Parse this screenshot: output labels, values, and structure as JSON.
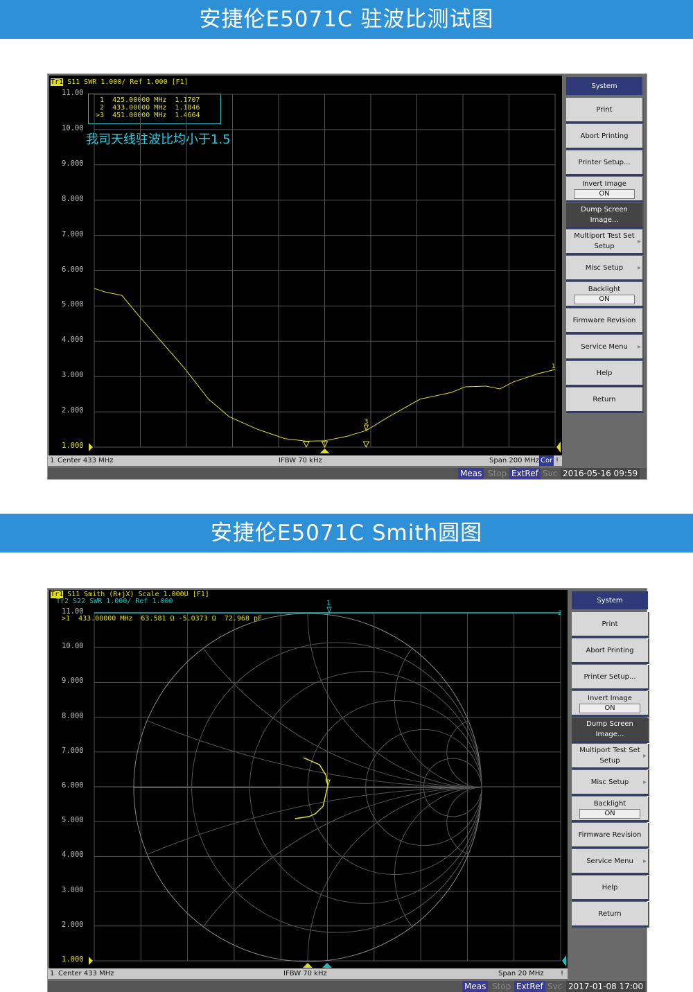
{
  "banner1": "安捷伦E5071C  驻波比测试图",
  "banner2": "安捷伦E5071C  Smith圆图",
  "softkeys": [
    {
      "label": "System",
      "style": "title"
    },
    {
      "label": "Print"
    },
    {
      "label": "Abort Printing"
    },
    {
      "label": "Printer Setup..."
    },
    {
      "label": "Invert Image",
      "value": "ON"
    },
    {
      "label": "Dump Screen Image...",
      "style": "dark"
    },
    {
      "label": "Multiport Test Set Setup",
      "arrow": true
    },
    {
      "label": "Misc Setup",
      "arrow": true
    },
    {
      "label": "Backlight",
      "value": "ON"
    },
    {
      "label": "Firmware Revision"
    },
    {
      "label": "Service Menu",
      "arrow": true
    },
    {
      "label": "Help"
    },
    {
      "label": "Return"
    }
  ],
  "y_ticks": [
    "11.00",
    "10.00",
    "9.000",
    "8.000",
    "7.000",
    "6.000",
    "5.000",
    "4.000",
    "3.000",
    "2.000",
    "1.000"
  ],
  "colors": {
    "trace1": "#e0e020",
    "trace2": "#20c0c0",
    "grid": "#555555",
    "banner": "#2e90d6"
  },
  "panel1": {
    "trace_header": "S11 SWR 1.000/ Ref 1.000 [F1]",
    "tr_label": "Tr1",
    "markers": [
      "  1  425.00000 MHz  1.1707",
      "  2  433.00000 MHz  1.1846",
      " >3  451.00000 MHz  1.4664"
    ],
    "annotation": "我司天线驻波比均小于1.5",
    "status": {
      "channel": "1",
      "center": "Center 433 MHz",
      "ifbw": "IFBW 70 kHz",
      "span": "Span 200 MHz",
      "cor": "Cor",
      "excl": "!"
    },
    "bottom": {
      "meas": "Meas",
      "stop": "Stop",
      "extref": "ExtRef",
      "svc": "Svc",
      "datetime": "2016-05-16 09:59"
    },
    "trace": {
      "x_range_mhz": [
        333,
        533
      ],
      "y_range": [
        1,
        11
      ],
      "freq": [
        333,
        337.5,
        345,
        352.5,
        361.6,
        372.1,
        382.6,
        391.6,
        403.7,
        415.7,
        425,
        433,
        442.8,
        451,
        460.8,
        474.4,
        488,
        494,
        503,
        509,
        515,
        525.5,
        533
      ],
      "swr": [
        5.5,
        5.4,
        5.3,
        4.71,
        4.03,
        3.24,
        2.36,
        1.86,
        1.51,
        1.24,
        1.17,
        1.18,
        1.31,
        1.47,
        1.86,
        2.36,
        2.55,
        2.71,
        2.73,
        2.65,
        2.85,
        3.08,
        3.2
      ]
    },
    "marker_freqs": [
      425,
      433,
      451
    ],
    "marker_labels": [
      "1",
      "2",
      "3"
    ]
  },
  "panel2": {
    "tr1_label": "Tr1",
    "tr1_header": "S11 Smith (R+jX) Scale 1.000U [F1]",
    "tr2_header": "Tr2 S22 SWR 1.000/ Ref 1.000",
    "marker": ">1  433.00000 MHz  63.581 Ω -5.0373 Ω  72.968 pF",
    "marker_label": "1",
    "tr2_end_label": "2",
    "status": {
      "channel": "1",
      "center": "Center 433 MHz",
      "ifbw": "IFBW 70 kHz",
      "span": "Span 20 MHz",
      "excl": "!"
    },
    "bottom": {
      "meas": "Meas",
      "stop": "Stop",
      "extref": "ExtRef",
      "svc": "Svc",
      "datetime": "2017-01-08 17:00"
    },
    "trace_gamma": [
      [
        -0.024,
        0.171
      ],
      [
        0.068,
        0.131
      ],
      [
        0.105,
        0.07
      ],
      [
        0.116,
        0.012
      ],
      [
        0.088,
        -0.108
      ],
      [
        0.045,
        -0.15
      ],
      [
        0.008,
        -0.167
      ],
      [
        -0.072,
        -0.179
      ]
    ]
  }
}
